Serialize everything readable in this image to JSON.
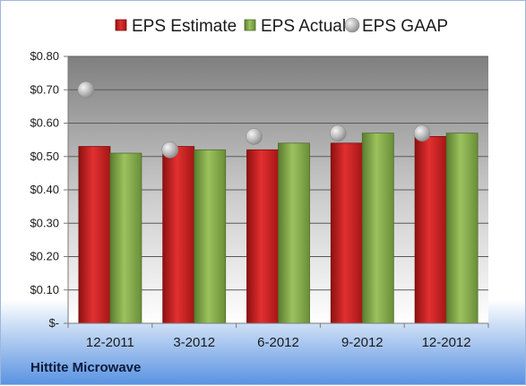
{
  "chart_data": {
    "type": "bar",
    "categories": [
      "12-2011",
      "3-2012",
      "6-2012",
      "9-2012",
      "12-2012"
    ],
    "series": [
      {
        "name": "EPS Estimate",
        "kind": "bar",
        "color": "#cc1f1f",
        "values": [
          0.53,
          0.53,
          0.52,
          0.54,
          0.56
        ]
      },
      {
        "name": "EPS Actual",
        "kind": "bar",
        "color": "#7fa84a",
        "values": [
          0.51,
          0.52,
          0.54,
          0.57,
          0.57
        ]
      },
      {
        "name": "EPS GAAP",
        "kind": "marker",
        "color": "#b0b0b0",
        "values": [
          0.7,
          0.52,
          0.56,
          0.57,
          0.57
        ]
      }
    ],
    "ylim": [
      0,
      0.8
    ],
    "yticks": [
      0,
      0.1,
      0.2,
      0.3,
      0.4,
      0.5,
      0.6,
      0.7,
      0.8
    ],
    "ytick_labels": [
      "$-",
      "$0.10",
      "$0.20",
      "$0.30",
      "$0.40",
      "$0.50",
      "$0.60",
      "$0.70",
      "$0.80"
    ],
    "grid": true,
    "legend_position": "top"
  },
  "footer": {
    "company": "Hittite Microwave"
  }
}
